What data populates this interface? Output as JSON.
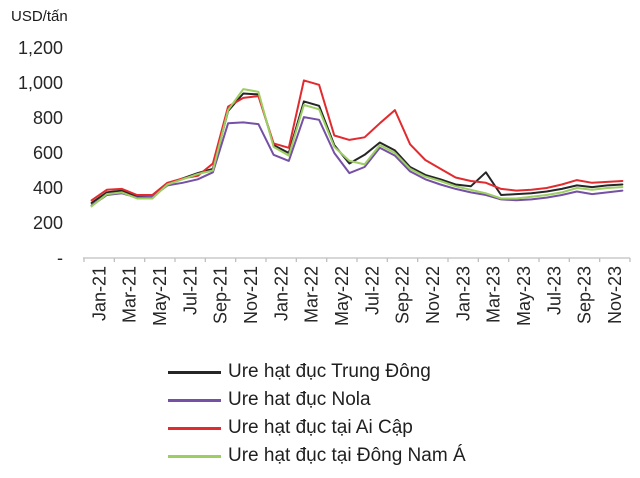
{
  "title": "USD/tấn",
  "colors": {
    "axis": "#BFBFBF",
    "tick_text": "#262626"
  },
  "chart_data": {
    "type": "line",
    "title": "",
    "ylabel": "USD/tấn",
    "xlabel": "",
    "grid": false,
    "legend_position": "bottom",
    "ylim": [
      0,
      1200
    ],
    "y_ticks": [
      {
        "value": 1200,
        "label": "1,200"
      },
      {
        "value": 1000,
        "label": "1,000"
      },
      {
        "value": 800,
        "label": "800"
      },
      {
        "value": 600,
        "label": "600"
      },
      {
        "value": 400,
        "label": "400"
      },
      {
        "value": 200,
        "label": "200"
      },
      {
        "value": 0,
        "label": "-"
      }
    ],
    "x": [
      "Jan-21",
      "Feb-21",
      "Mar-21",
      "Apr-21",
      "May-21",
      "Jun-21",
      "Jul-21",
      "Aug-21",
      "Sep-21",
      "Oct-21",
      "Nov-21",
      "Dec-21",
      "Jan-22",
      "Feb-22",
      "Mar-22",
      "Apr-22",
      "May-22",
      "Jun-22",
      "Jul-22",
      "Aug-22",
      "Sep-22",
      "Oct-22",
      "Nov-22",
      "Dec-22",
      "Jan-23",
      "Feb-23",
      "Mar-23",
      "Apr-23",
      "May-23",
      "Jun-23",
      "Jul-23",
      "Aug-23",
      "Sep-23",
      "Oct-23",
      "Nov-23",
      "Dec-23"
    ],
    "x_tick_labels": [
      "Jan-21",
      "Mar-21",
      "May-21",
      "Jul-21",
      "Sep-21",
      "Nov-21",
      "Jan-22",
      "Mar-22",
      "May-22",
      "Jul-22",
      "Sep-22",
      "Nov-22",
      "Jan-23",
      "Mar-23",
      "May-23",
      "Jul-23",
      "Sep-23",
      "Nov-23"
    ],
    "series": [
      {
        "name": "Ure hạt đục Trung Đông",
        "color": "#262626",
        "values": [
          315,
          375,
          385,
          350,
          355,
          420,
          455,
          485,
          510,
          840,
          940,
          935,
          645,
          600,
          895,
          870,
          645,
          540,
          590,
          660,
          615,
          520,
          475,
          450,
          420,
          410,
          490,
          360,
          365,
          370,
          380,
          395,
          415,
          405,
          415,
          420
        ]
      },
      {
        "name": "Ure hat đục Nola",
        "color": "#7550A5",
        "values": [
          300,
          360,
          370,
          345,
          350,
          415,
          430,
          450,
          490,
          770,
          775,
          765,
          590,
          555,
          805,
          790,
          600,
          485,
          520,
          630,
          585,
          495,
          450,
          420,
          395,
          375,
          360,
          335,
          330,
          335,
          345,
          360,
          380,
          365,
          375,
          385
        ]
      },
      {
        "name": "Ure hạt đục tại Ai Cập",
        "color": "#E12B2F",
        "values": [
          330,
          390,
          395,
          360,
          360,
          430,
          455,
          470,
          540,
          865,
          915,
          925,
          655,
          630,
          1015,
          990,
          700,
          675,
          690,
          770,
          845,
          650,
          560,
          510,
          460,
          440,
          430,
          395,
          385,
          390,
          400,
          420,
          445,
          430,
          435,
          440
        ]
      },
      {
        "name": "Ure hạt đục tại Đông Nam Á",
        "color": "#9CCE62",
        "values": [
          295,
          365,
          375,
          340,
          340,
          420,
          450,
          480,
          500,
          845,
          965,
          950,
          635,
          585,
          875,
          850,
          635,
          555,
          535,
          645,
          600,
          510,
          465,
          440,
          410,
          390,
          370,
          340,
          340,
          350,
          360,
          375,
          400,
          390,
          400,
          405
        ]
      }
    ]
  }
}
